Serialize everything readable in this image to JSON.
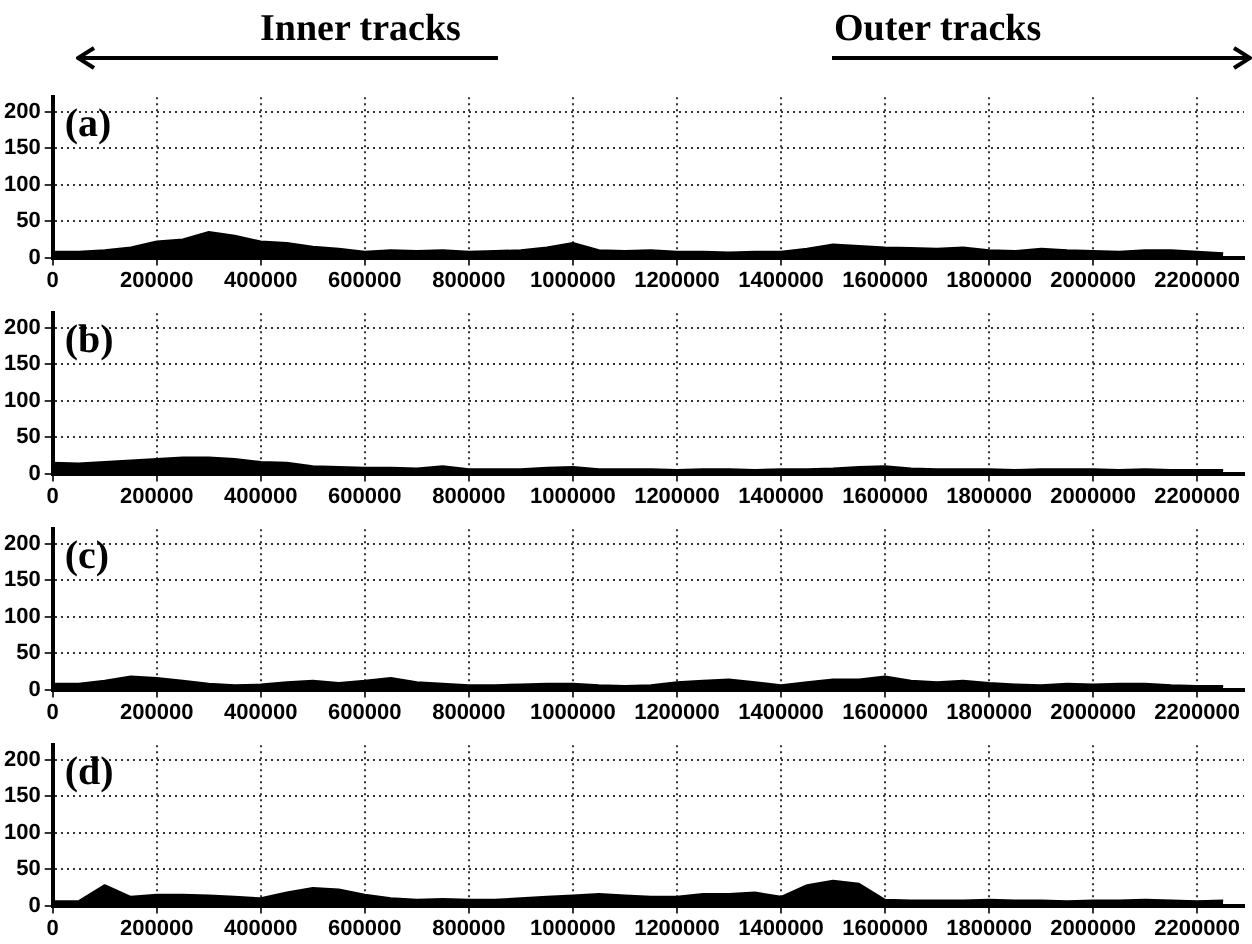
{
  "chart_data": [
    {
      "type": "area",
      "title": "(a)",
      "annotations": [
        "Inner tracks",
        "Outer tracks"
      ],
      "color": "#000000",
      "grid": true,
      "x": [
        0,
        50000,
        100000,
        150000,
        200000,
        250000,
        300000,
        350000,
        400000,
        450000,
        500000,
        550000,
        600000,
        650000,
        700000,
        750000,
        800000,
        850000,
        900000,
        950000,
        1000000,
        1050000,
        1100000,
        1150000,
        1200000,
        1250000,
        1300000,
        1350000,
        1400000,
        1450000,
        1500000,
        1550000,
        1600000,
        1650000,
        1700000,
        1750000,
        1800000,
        1850000,
        1900000,
        1950000,
        2000000,
        2050000,
        2100000,
        2150000,
        2200000,
        2250000
      ],
      "values": [
        8,
        8,
        10,
        14,
        22,
        25,
        35,
        30,
        22,
        20,
        15,
        12,
        8,
        10,
        9,
        10,
        8,
        9,
        10,
        14,
        20,
        10,
        9,
        10,
        8,
        8,
        7,
        8,
        8,
        12,
        18,
        16,
        14,
        13,
        12,
        14,
        10,
        9,
        12,
        10,
        9,
        8,
        10,
        10,
        8,
        6
      ],
      "xlim": [
        0,
        2290000
      ],
      "ylim": [
        0,
        220
      ],
      "xticks": [
        0,
        200000,
        400000,
        600000,
        800000,
        1000000,
        1200000,
        1400000,
        1600000,
        1800000,
        2000000,
        2200000
      ],
      "yticks": [
        0,
        50,
        100,
        150,
        200
      ]
    },
    {
      "type": "area",
      "title": "(b)",
      "color": "#000000",
      "grid": true,
      "x": [
        0,
        50000,
        100000,
        150000,
        200000,
        250000,
        300000,
        350000,
        400000,
        450000,
        500000,
        550000,
        600000,
        650000,
        700000,
        750000,
        800000,
        850000,
        900000,
        950000,
        1000000,
        1050000,
        1100000,
        1150000,
        1200000,
        1250000,
        1300000,
        1350000,
        1400000,
        1450000,
        1500000,
        1550000,
        1600000,
        1650000,
        1700000,
        1750000,
        1800000,
        1850000,
        1900000,
        1950000,
        2000000,
        2050000,
        2100000,
        2150000,
        2200000,
        2250000
      ],
      "values": [
        15,
        14,
        16,
        18,
        20,
        22,
        22,
        20,
        16,
        15,
        10,
        9,
        8,
        8,
        7,
        10,
        6,
        6,
        6,
        8,
        9,
        6,
        6,
        6,
        5,
        6,
        6,
        5,
        6,
        6,
        7,
        9,
        10,
        7,
        6,
        6,
        6,
        5,
        6,
        6,
        6,
        5,
        6,
        5,
        5,
        5
      ],
      "xlim": [
        0,
        2290000
      ],
      "ylim": [
        0,
        220
      ],
      "xticks": [
        0,
        200000,
        400000,
        600000,
        800000,
        1000000,
        1200000,
        1400000,
        1600000,
        1800000,
        2000000,
        2200000
      ],
      "yticks": [
        0,
        50,
        100,
        150,
        200
      ]
    },
    {
      "type": "area",
      "title": "(c)",
      "color": "#000000",
      "grid": true,
      "x": [
        0,
        50000,
        100000,
        150000,
        200000,
        250000,
        300000,
        350000,
        400000,
        450000,
        500000,
        550000,
        600000,
        650000,
        700000,
        750000,
        800000,
        850000,
        900000,
        950000,
        1000000,
        1050000,
        1100000,
        1150000,
        1200000,
        1250000,
        1300000,
        1350000,
        1400000,
        1450000,
        1500000,
        1550000,
        1600000,
        1650000,
        1700000,
        1750000,
        1800000,
        1850000,
        1900000,
        1950000,
        2000000,
        2050000,
        2100000,
        2150000,
        2200000,
        2250000
      ],
      "values": [
        8,
        8,
        12,
        18,
        16,
        12,
        8,
        6,
        7,
        10,
        12,
        9,
        12,
        16,
        10,
        8,
        6,
        6,
        7,
        8,
        8,
        6,
        5,
        6,
        10,
        12,
        14,
        10,
        6,
        10,
        14,
        14,
        18,
        12,
        10,
        12,
        9,
        7,
        6,
        8,
        7,
        8,
        8,
        6,
        5,
        5
      ],
      "xlim": [
        0,
        2290000
      ],
      "ylim": [
        0,
        220
      ],
      "xticks": [
        0,
        200000,
        400000,
        600000,
        800000,
        1000000,
        1200000,
        1400000,
        1600000,
        1800000,
        2000000,
        2200000
      ],
      "yticks": [
        0,
        50,
        100,
        150,
        200
      ]
    },
    {
      "type": "area",
      "title": "(d)",
      "color": "#000000",
      "grid": true,
      "x": [
        0,
        50000,
        100000,
        150000,
        200000,
        250000,
        300000,
        350000,
        400000,
        450000,
        500000,
        550000,
        600000,
        650000,
        700000,
        750000,
        800000,
        850000,
        900000,
        950000,
        1000000,
        1050000,
        1100000,
        1150000,
        1200000,
        1250000,
        1300000,
        1350000,
        1400000,
        1450000,
        1500000,
        1550000,
        1600000,
        1650000,
        1700000,
        1750000,
        1800000,
        1850000,
        1900000,
        1950000,
        2000000,
        2050000,
        2100000,
        2150000,
        2200000,
        2250000
      ],
      "values": [
        6,
        6,
        28,
        12,
        15,
        15,
        14,
        12,
        10,
        18,
        24,
        22,
        15,
        10,
        8,
        9,
        8,
        8,
        10,
        12,
        14,
        16,
        14,
        12,
        12,
        16,
        16,
        18,
        12,
        28,
        34,
        30,
        8,
        7,
        7,
        7,
        8,
        7,
        7,
        6,
        7,
        7,
        8,
        7,
        6,
        7
      ],
      "xlim": [
        0,
        2290000
      ],
      "ylim": [
        0,
        220
      ],
      "xticks": [
        0,
        200000,
        400000,
        600000,
        800000,
        1000000,
        1200000,
        1400000,
        1600000,
        1800000,
        2000000,
        2200000
      ],
      "yticks": [
        0,
        50,
        100,
        150,
        200
      ]
    }
  ]
}
